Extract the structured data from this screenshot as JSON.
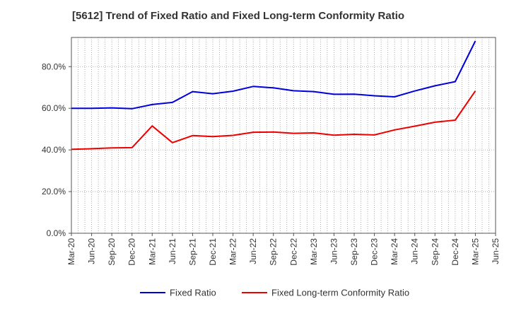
{
  "chart_data": {
    "type": "line",
    "title": "[5612]  Trend of Fixed Ratio and Fixed Long-term Conformity Ratio",
    "xlabel": "",
    "ylabel": "",
    "categories": [
      "Mar-20",
      "Jun-20",
      "Sep-20",
      "Dec-20",
      "Mar-21",
      "Jun-21",
      "Sep-21",
      "Dec-21",
      "Mar-22",
      "Jun-22",
      "Sep-22",
      "Dec-22",
      "Mar-23",
      "Jun-23",
      "Sep-23",
      "Dec-23",
      "Mar-24",
      "Jun-24",
      "Sep-24",
      "Dec-24",
      "Mar-25",
      "Jun-25"
    ],
    "ylim": [
      0,
      94
    ],
    "yticks": [
      0,
      20,
      40,
      60,
      80
    ],
    "ytick_labels": [
      "0.0%",
      "20.0%",
      "40.0%",
      "60.0%",
      "80.0%"
    ],
    "grid": true,
    "legend_position": "bottom",
    "series": [
      {
        "name": "Fixed Ratio",
        "color": "#0000dd",
        "values": [
          60.0,
          60.0,
          60.2,
          59.8,
          61.8,
          62.8,
          68.0,
          67.0,
          68.2,
          70.5,
          69.8,
          68.4,
          68.0,
          66.7,
          66.8,
          66.0,
          65.5,
          68.3,
          70.8,
          72.8,
          92.3,
          null
        ]
      },
      {
        "name": "Fixed Long-term Conformity Ratio",
        "color": "#ee0000",
        "values": [
          40.3,
          40.6,
          41.0,
          41.1,
          51.5,
          43.5,
          46.9,
          46.4,
          47.0,
          48.5,
          48.6,
          48.0,
          48.2,
          47.1,
          47.5,
          47.2,
          49.6,
          51.4,
          53.3,
          54.3,
          68.3,
          null
        ]
      }
    ]
  }
}
